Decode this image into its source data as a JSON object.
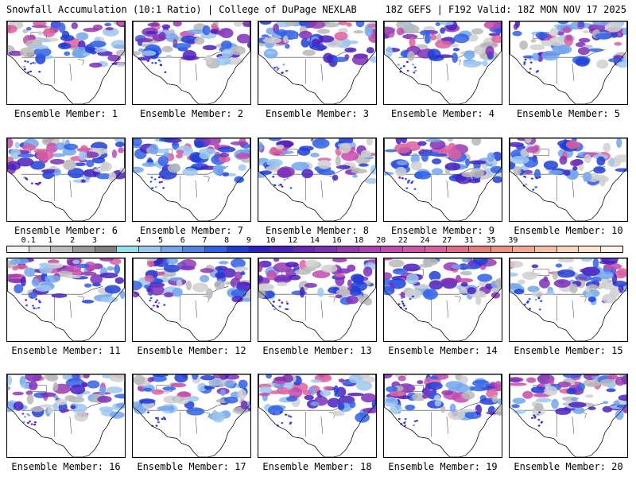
{
  "header": {
    "left": "Snowfall Accumulation (10:1 Ratio) | College of DuPage NEXLAB",
    "right": "18Z GEFS | F192 Valid: 18Z MON NOV 17 2025"
  },
  "members": [
    "Ensemble Member: 1",
    "Ensemble Member: 2",
    "Ensemble Member: 3",
    "Ensemble Member: 4",
    "Ensemble Member: 5",
    "Ensemble Member: 6",
    "Ensemble Member: 7",
    "Ensemble Member: 8",
    "Ensemble Member: 9",
    "Ensemble Member: 10",
    "Ensemble Member: 11",
    "Ensemble Member: 12",
    "Ensemble Member: 13",
    "Ensemble Member: 14",
    "Ensemble Member: 15",
    "Ensemble Member: 16",
    "Ensemble Member: 17",
    "Ensemble Member: 18",
    "Ensemble Member: 19",
    "Ensemble Member: 20"
  ],
  "colorbar": {
    "labels": [
      "0.1",
      "1",
      "2",
      "3",
      "4",
      "5",
      "6",
      "7",
      "8",
      "9",
      "10",
      "12",
      "14",
      "16",
      "18",
      "20",
      "22",
      "24",
      "27",
      "31",
      "35",
      "39"
    ],
    "colors": [
      "#f4f4f4",
      "#d9d9d9",
      "#bdbdbd",
      "#9a9a9a",
      "#7f7f7f",
      "#8fe6ea",
      "#9cc8f0",
      "#73a6ee",
      "#4f84ea",
      "#3060e6",
      "#1e3ed8",
      "#2b20c8",
      "#4a1fc0",
      "#6a22b8",
      "#7e2fb8",
      "#9838b0",
      "#b03eb4",
      "#c34aaf",
      "#d256a8",
      "#dd5fa0",
      "#e56a8c",
      "#eb7c7c",
      "#f09081",
      "#f4a890",
      "#f7c0a5",
      "#fad6bc",
      "#fce6d2",
      "#fff3e6"
    ]
  }
}
